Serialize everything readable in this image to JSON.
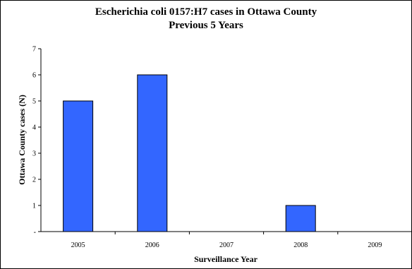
{
  "chart_data": {
    "type": "bar",
    "title": "Escherichia coli 0157:H7 cases in Ottawa County",
    "subtitle": "Previous 5 Years",
    "xlabel": "Surveillance Year",
    "ylabel": "Ottawa County cases (N)",
    "categories": [
      "2005",
      "2006",
      "2007",
      "2008",
      "2009"
    ],
    "values": [
      5,
      6,
      0,
      1,
      0
    ],
    "ylim": [
      0,
      7
    ],
    "yticks": [
      {
        "value": 0,
        "label": "-"
      },
      {
        "value": 1,
        "label": "1"
      },
      {
        "value": 2,
        "label": "2"
      },
      {
        "value": 3,
        "label": "3"
      },
      {
        "value": 4,
        "label": "4"
      },
      {
        "value": 5,
        "label": "5"
      },
      {
        "value": 6,
        "label": "6"
      },
      {
        "value": 7,
        "label": "7"
      }
    ],
    "bar_color": "#3366ff",
    "grid": false,
    "legend": "none"
  }
}
